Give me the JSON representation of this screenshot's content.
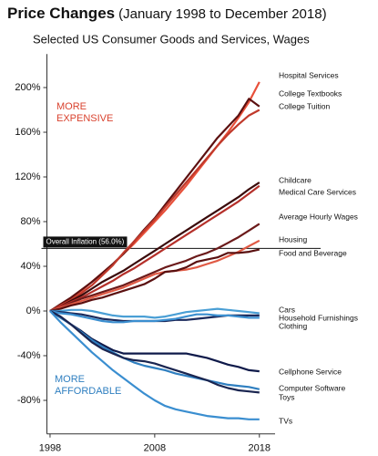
{
  "chart_data": {
    "type": "line",
    "title": "Price Changes",
    "title_note": "(January 1998 to December 2018)",
    "subtitle": "Selected US Consumer Goods and Services, Wages",
    "annotations": {
      "expensive": [
        "MORE",
        "EXPENSIVE"
      ],
      "affordable": [
        "MORE",
        "AFFORDABLE"
      ]
    },
    "inflation": {
      "label": "Overall Inflation (56.0%)",
      "value": 56.0
    },
    "x": [
      1998,
      1999,
      2000,
      2001,
      2002,
      2003,
      2004,
      2005,
      2006,
      2007,
      2008,
      2009,
      2010,
      2011,
      2012,
      2013,
      2014,
      2015,
      2016,
      2017,
      2018
    ],
    "xlim": [
      1997.7,
      2019.5
    ],
    "xticks": [
      1998,
      2008,
      2018
    ],
    "ylim": [
      -110,
      230
    ],
    "yticks": [
      {
        "value": -80,
        "label": "-80%"
      },
      {
        "value": -40,
        "label": "-40%"
      },
      {
        "value": 0,
        "label": "0%"
      },
      {
        "value": 40,
        "label": "40%"
      },
      {
        "value": 80,
        "label": "80%"
      },
      {
        "value": 120,
        "label": "120%"
      },
      {
        "value": 160,
        "label": "160%"
      },
      {
        "value": 200,
        "label": "200%"
      }
    ],
    "series": [
      {
        "name": "Hospital Services",
        "color": "#e8503a",
        "values": [
          0,
          5,
          11,
          18,
          26,
          34,
          42,
          51,
          60,
          70,
          80,
          90,
          101,
          112,
          124,
          136,
          148,
          160,
          173,
          187,
          205
        ]
      },
      {
        "name": "College Textbooks",
        "color": "#5c1010",
        "values": [
          0,
          6,
          12,
          19,
          26,
          34,
          42,
          51,
          62,
          73,
          83,
          95,
          107,
          119,
          131,
          143,
          155,
          165,
          175,
          190,
          183
        ]
      },
      {
        "name": "College Tuition",
        "color": "#c0392b",
        "values": [
          0,
          5,
          10,
          16,
          23,
          32,
          41,
          52,
          62,
          72,
          82,
          93,
          104,
          115,
          126,
          137,
          148,
          158,
          167,
          175,
          180
        ]
      },
      {
        "name": "Childcare",
        "color": "#3a0a0a",
        "values": [
          0,
          4,
          9,
          14,
          20,
          26,
          31,
          36,
          42,
          48,
          54,
          60,
          66,
          72,
          78,
          84,
          90,
          96,
          102,
          109,
          115
        ]
      },
      {
        "name": "Medical Care Services",
        "color": "#b5302a",
        "values": [
          0,
          4,
          8,
          12,
          17,
          22,
          27,
          33,
          38,
          44,
          50,
          56,
          62,
          68,
          74,
          80,
          86,
          92,
          98,
          105,
          112
        ]
      },
      {
        "name": "Average Hourly Wages",
        "color": "#6b1a1a",
        "values": [
          0,
          3,
          7,
          11,
          14,
          17,
          20,
          23,
          27,
          31,
          35,
          39,
          42,
          45,
          49,
          52,
          56,
          61,
          66,
          72,
          78
        ]
      },
      {
        "name": "Housing",
        "color": "#e05a45",
        "values": [
          0,
          3,
          6,
          9,
          12,
          15,
          18,
          21,
          25,
          29,
          33,
          35,
          36,
          37,
          39,
          42,
          45,
          49,
          53,
          58,
          63
        ]
      },
      {
        "name": "Food and Beverage",
        "color": "#5a1010",
        "values": [
          0,
          2,
          5,
          7,
          10,
          12,
          15,
          18,
          21,
          24,
          29,
          35,
          36,
          39,
          44,
          46,
          48,
          52,
          52,
          53,
          55
        ]
      },
      {
        "name": "Cars",
        "color": "#4a9fd5",
        "values": [
          0,
          0,
          1,
          1,
          0,
          -2,
          -4,
          -5,
          -5,
          -5,
          -6,
          -5,
          -3,
          -1,
          0,
          1,
          2,
          1,
          0,
          -1,
          -2
        ]
      },
      {
        "name": "Household Furnishings",
        "color": "#1b2a5c",
        "values": [
          0,
          -1,
          -2,
          -3,
          -5,
          -7,
          -8,
          -9,
          -9,
          -9,
          -9,
          -9,
          -8,
          -8,
          -7,
          -6,
          -5,
          -4,
          -4,
          -4,
          -4
        ]
      },
      {
        "name": "Clothing",
        "color": "#3b8fd0",
        "values": [
          0,
          -2,
          -3,
          -5,
          -7,
          -9,
          -10,
          -10,
          -9,
          -9,
          -9,
          -8,
          -7,
          -5,
          -3,
          -3,
          -4,
          -4,
          -5,
          -6,
          -6
        ]
      },
      {
        "name": "Cellphone Service",
        "color": "#0f1a4a",
        "values": [
          0,
          -5,
          -12,
          -18,
          -25,
          -30,
          -35,
          -38,
          -38,
          -38,
          -38,
          -38,
          -38,
          -38,
          -40,
          -42,
          -45,
          -48,
          -50,
          -53,
          -54
        ]
      },
      {
        "name": "Computer Software",
        "color": "#2f7fc0",
        "values": [
          0,
          -6,
          -12,
          -19,
          -26,
          -32,
          -37,
          -42,
          -46,
          -49,
          -51,
          -53,
          -56,
          -58,
          -60,
          -62,
          -64,
          -66,
          -67,
          -68,
          -70
        ]
      },
      {
        "name": "Toys",
        "color": "#1a2550",
        "values": [
          0,
          -5,
          -12,
          -20,
          -28,
          -34,
          -38,
          -42,
          -44,
          -45,
          -47,
          -50,
          -53,
          -56,
          -59,
          -62,
          -66,
          -69,
          -71,
          -72,
          -73
        ]
      },
      {
        "name": "TVs",
        "color": "#3a8ed0",
        "values": [
          0,
          -10,
          -19,
          -28,
          -37,
          -45,
          -53,
          -60,
          -67,
          -74,
          -80,
          -85,
          -88,
          -90,
          -92,
          -94,
          -95,
          -96,
          -96,
          -97,
          -97
        ]
      }
    ]
  }
}
